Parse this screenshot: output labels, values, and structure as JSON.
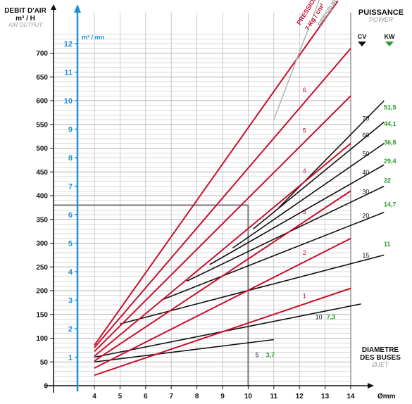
{
  "header": {
    "left_title": "DEBIT D'AIR",
    "left_unit": "m³ / H",
    "left_subtitle": "AIR OUTPUT",
    "blue_axis_unit": "m³ / mn",
    "right_title": "PUISSANCE",
    "right_subtitle": "POWER",
    "cv_label": "CV",
    "kw_label": "KW",
    "pressure_label_red": "PRESSION",
    "pressure_label_red_value": "7 Kg / cm²",
    "pressure_label_grey": "PRESSURE",
    "x_title_line1": "DIAMETRE",
    "x_title_line2": "DES BUSES",
    "x_title_line3": "JET",
    "x_unit": "mm"
  },
  "colors": {
    "pressure_line": "#c8102e",
    "power_line": "#111111",
    "grid": "#b5b5b5",
    "blue_axis": "#1e90d6",
    "kw_green": "#2e9e2e",
    "cv_black": "#111111"
  },
  "chart_data": {
    "type": "line",
    "xlabel": "DIAMETRE DES BUSES Ø JET mm",
    "ylabel": "DEBIT D'AIR m³ / H",
    "x_ticks": [
      "4",
      "5",
      "6",
      "7",
      "8",
      "9",
      "10",
      "11",
      "12",
      "13",
      "14"
    ],
    "y_ticks": [
      "0",
      "50",
      "100",
      "150",
      "200",
      "250",
      "300",
      "350",
      "400",
      "450",
      "500",
      "550",
      "600",
      "650",
      "700"
    ],
    "xlim": [
      3,
      14.5
    ],
    "ylim": [
      0,
      740
    ],
    "blue_axis_ticks": [
      "1",
      "2",
      "3",
      "4",
      "5",
      "6",
      "7",
      "8",
      "9",
      "10",
      "11",
      "12"
    ],
    "pressure_series": [
      {
        "name": "1",
        "points": [
          [
            4,
            22
          ],
          [
            14,
            205
          ]
        ]
      },
      {
        "name": "2",
        "points": [
          [
            4,
            37
          ],
          [
            14,
            310
          ]
        ]
      },
      {
        "name": "3",
        "points": [
          [
            4,
            52
          ],
          [
            14,
            410
          ]
        ]
      },
      {
        "name": "4",
        "points": [
          [
            4,
            62
          ],
          [
            14,
            510
          ]
        ]
      },
      {
        "name": "5",
        "points": [
          [
            4,
            72
          ],
          [
            14,
            610
          ]
        ]
      },
      {
        "name": "6",
        "points": [
          [
            4,
            80
          ],
          [
            14,
            710
          ]
        ]
      },
      {
        "name": "7 Kg / cm²",
        "points": [
          [
            4,
            85
          ],
          [
            13.5,
            810
          ]
        ]
      }
    ],
    "power_series": [
      {
        "cv": "5",
        "kw": "3,7",
        "points": [
          [
            4,
            50
          ],
          [
            11,
            97
          ]
        ]
      },
      {
        "cv": "10",
        "kw": "7,3",
        "points": [
          [
            4,
            60
          ],
          [
            14.4,
            172
          ]
        ]
      },
      {
        "cv": "15",
        "kw": "11",
        "points": [
          [
            5,
            130
          ],
          [
            15.3,
            275
          ]
        ]
      },
      {
        "cv": "20",
        "kw": "14,7",
        "points": [
          [
            6.6,
            180
          ],
          [
            15.3,
            365
          ]
        ]
      },
      {
        "cv": "30",
        "kw": "22",
        "points": [
          [
            7.6,
            220
          ],
          [
            15.3,
            420
          ]
        ]
      },
      {
        "cv": "40",
        "kw": "29,4",
        "points": [
          [
            8.5,
            255
          ],
          [
            15.3,
            465
          ]
        ]
      },
      {
        "cv": "50",
        "kw": "36,8",
        "points": [
          [
            9.4,
            290
          ],
          [
            15.3,
            510
          ]
        ]
      },
      {
        "cv": "60",
        "kw": "44,1",
        "points": [
          [
            10.2,
            330
          ],
          [
            15.3,
            555
          ]
        ]
      },
      {
        "cv": "70",
        "kw": "51,5",
        "points": [
          [
            11.2,
            375
          ],
          [
            15.3,
            600
          ]
        ]
      }
    ],
    "reference_point": {
      "x": 10,
      "y": 380
    },
    "grid": true
  }
}
